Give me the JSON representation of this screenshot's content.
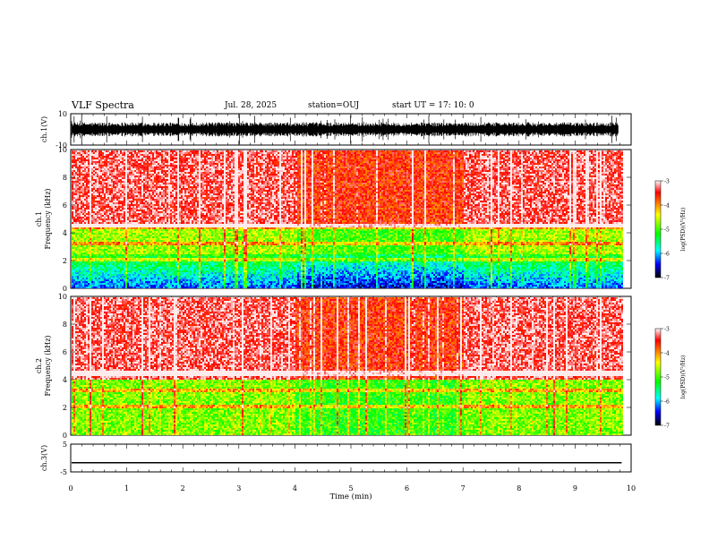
{
  "header": {
    "title": "VLF Spectra",
    "date": "Jul. 28, 2025",
    "station": "station=OUJ",
    "start": "start  UT =  17: 10: 0"
  },
  "chart_data": {
    "type": "heatmap",
    "xlabel": "Time (min)",
    "xlim": [
      0,
      10
    ],
    "x_ticks": [
      0,
      1,
      2,
      3,
      4,
      5,
      6,
      7,
      8,
      9,
      10
    ],
    "panels": [
      {
        "name": "ch1-waveform",
        "ylabel": "ch.1(V)",
        "ylim": [
          -10,
          10
        ],
        "y_ticks": [
          {
            "value": 10,
            "label": "10"
          },
          {
            "value": -10,
            "label": "-10"
          }
        ],
        "baseline": 0
      },
      {
        "name": "ch1-spectrogram",
        "ylabel": "ch.1\nFrequency (kHz)",
        "ylim": [
          0,
          10
        ],
        "y_ticks": [
          0,
          2,
          4,
          6,
          8,
          10
        ],
        "colorbar": {
          "label": "log(PSD)(V²/Hz)",
          "range": [
            -7,
            -3
          ],
          "ticks": [
            -3,
            -4,
            -5,
            -6,
            -7
          ]
        },
        "data_end_min": 9.83
      },
      {
        "name": "ch2-spectrogram",
        "ylabel": "ch.2\nFrequency (kHz)",
        "ylim": [
          0,
          10
        ],
        "y_ticks": [
          0,
          2,
          4,
          6,
          8,
          10
        ],
        "colorbar": {
          "label": "log(PSD)(V²/Hz)",
          "range": [
            -7,
            -3
          ],
          "ticks": [
            -3,
            -4,
            -5,
            -6,
            -7
          ]
        },
        "data_end_min": 9.83
      },
      {
        "name": "ch3-waveform",
        "ylabel": "ch.3(V)",
        "ylim": [
          -5,
          5
        ],
        "y_ticks": [
          {
            "value": 5,
            "label": "5"
          },
          {
            "value": -5,
            "label": "-5"
          }
        ],
        "level": -1.7
      }
    ]
  }
}
